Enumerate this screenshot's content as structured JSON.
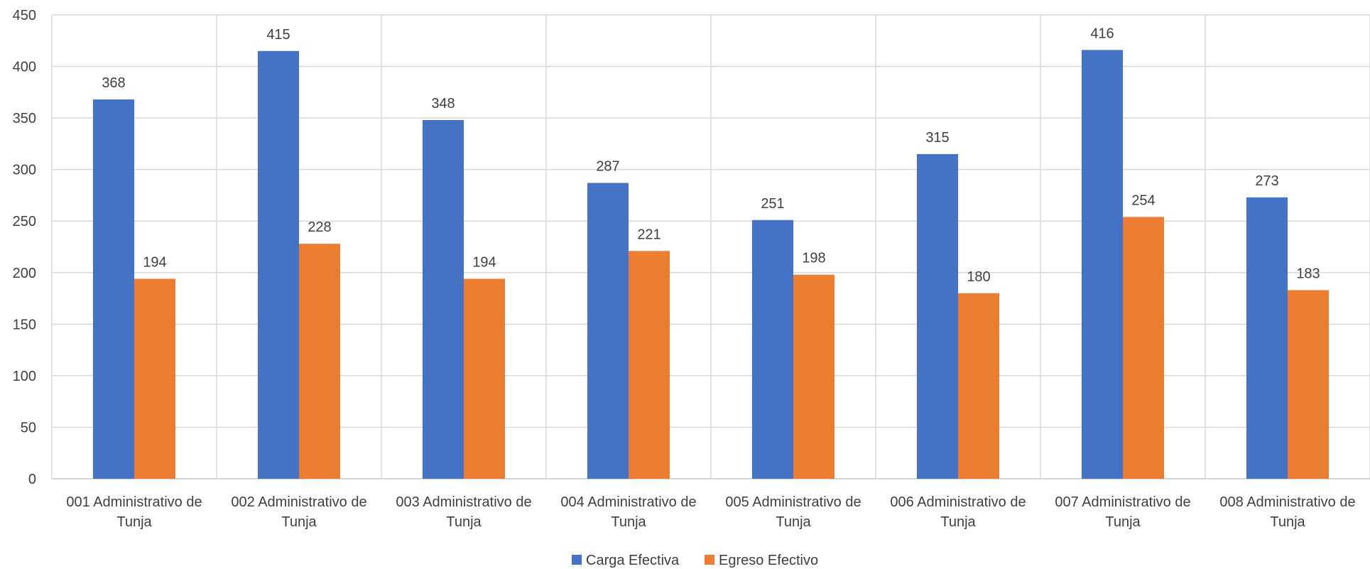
{
  "chart_data": {
    "type": "bar",
    "title": "",
    "xlabel": "",
    "ylabel": "",
    "ylim": [
      0,
      450
    ],
    "ytick_step": 50,
    "grid": true,
    "legend_position": "bottom",
    "categories": [
      [
        "001 Administrativo de",
        "Tunja"
      ],
      [
        "002 Administrativo de",
        "Tunja"
      ],
      [
        "003 Administrativo de",
        "Tunja"
      ],
      [
        "004 Administrativo de",
        "Tunja"
      ],
      [
        "005 Administrativo de",
        "Tunja"
      ],
      [
        "006 Administrativo de",
        "Tunja"
      ],
      [
        "007 Administrativo de",
        "Tunja"
      ],
      [
        "008 Administrativo de",
        "Tunja"
      ]
    ],
    "series": [
      {
        "name": "Carga Efectiva",
        "color": "#4472C4",
        "values": [
          368,
          415,
          348,
          287,
          251,
          315,
          416,
          273
        ]
      },
      {
        "name": "Egreso Efectivo",
        "color": "#ED7D31",
        "values": [
          194,
          228,
          194,
          221,
          198,
          180,
          254,
          183
        ]
      }
    ]
  }
}
